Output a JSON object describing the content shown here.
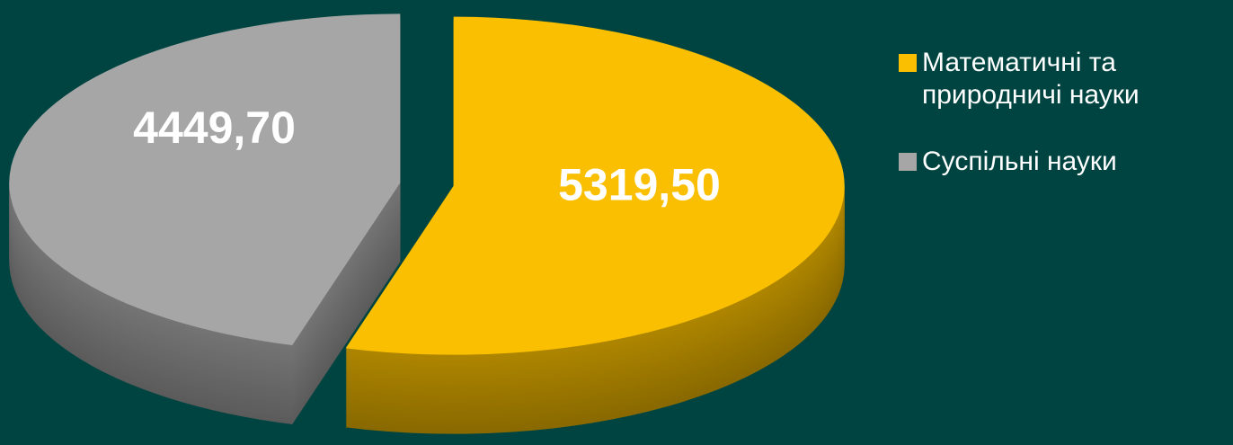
{
  "chart_data": {
    "type": "pie",
    "categories": [
      "Математичні та природничі науки",
      "Суспільні науки"
    ],
    "values": [
      5319.5,
      4449.7
    ],
    "value_labels": [
      "5319,50",
      "4449,70"
    ],
    "colors": [
      "#f9bf00",
      "#a6a6a6"
    ],
    "legend": "right"
  }
}
